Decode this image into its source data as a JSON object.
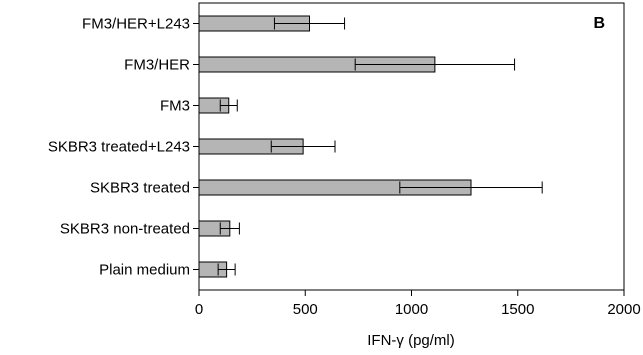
{
  "chart_data": {
    "type": "bar",
    "orientation": "horizontal",
    "panel_label": "B",
    "xlabel": "IFN-γ (pg/ml)",
    "ylabel": "",
    "xlim": [
      0,
      2000
    ],
    "xticks": [
      0,
      500,
      1000,
      1500,
      2000
    ],
    "bar_color": "#b5b5b5",
    "categories": [
      "FM3/HER+L243",
      "FM3/HER",
      "FM3",
      "SKBR3 treated+L243",
      "SKBR3 treated",
      "SKBR3 non-treated",
      "Plain medium"
    ],
    "values": [
      520,
      1110,
      140,
      490,
      1280,
      145,
      130
    ],
    "errors": [
      165,
      375,
      40,
      150,
      335,
      45,
      40
    ]
  }
}
